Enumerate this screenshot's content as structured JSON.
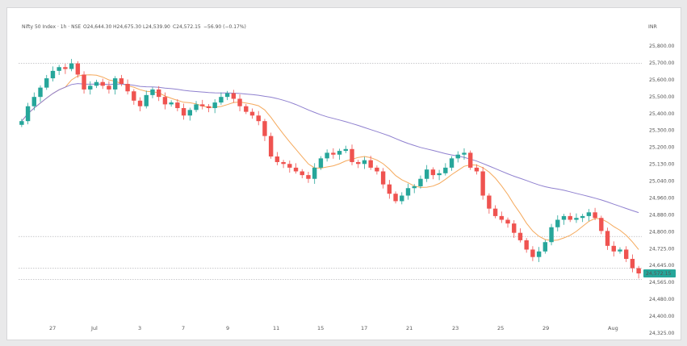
{
  "window": {
    "currency": "INR"
  },
  "legend": {
    "symbol": "Nifty 50 Index · 1h · NSE",
    "open": "O24,644.30",
    "high": "H24,675.30",
    "low": "L24,539.90",
    "close": "C24,572.15",
    "change": "−56.90 (−0.17%)"
  },
  "price_label": "24,572.15",
  "colors": {
    "up": "#26a69a",
    "down": "#ef5350",
    "ma_fast": "#f5a95c",
    "ma_slow": "#8f80cf",
    "price_tag": "#26a69a"
  },
  "chart_data": {
    "type": "candlestick",
    "title": "",
    "xlabel": "",
    "ylabel": "",
    "ylim": [
      24325,
      25850
    ],
    "y_ticks": [
      "25,800.00",
      "25,700.00",
      "25,600.00",
      "25,500.00",
      "25,400.00",
      "25,300.00",
      "25,200.00",
      "25,130.00",
      "25,040.00",
      "24,960.00",
      "24,880.00",
      "24,800.00",
      "24,725.00",
      "24,645.00",
      "24,565.00",
      "24,480.00",
      "24,400.00",
      "24,325.00"
    ],
    "x_ticks": [
      "27",
      "Jul",
      "3",
      "7",
      "9",
      "11",
      "15",
      "17",
      "21",
      "23",
      "25",
      "29",
      "Aug"
    ],
    "close_series": [
      25390,
      25470,
      25520,
      25570,
      25620,
      25660,
      25680,
      25670,
      25700,
      25640,
      25560,
      25580,
      25600,
      25580,
      25560,
      25620,
      25590,
      25550,
      25500,
      25470,
      25530,
      25560,
      25520,
      25480,
      25490,
      25460,
      25420,
      25450,
      25480,
      25470,
      25460,
      25490,
      25520,
      25540,
      25510,
      25470,
      25440,
      25420,
      25390,
      25310,
      25200,
      25170,
      25160,
      25140,
      25120,
      25100,
      25080,
      25140,
      25190,
      25220,
      25210,
      25230,
      25240,
      25170,
      25160,
      25180,
      25140,
      25120,
      25050,
      25000,
      24960,
      24990,
      25030,
      25040,
      25080,
      25130,
      25100,
      25110,
      25140,
      25190,
      25210,
      25220,
      25140,
      25120,
      24990,
      24920,
      24880,
      24860,
      24840,
      24790,
      24750,
      24700,
      24660,
      24690,
      24740,
      24820,
      24860,
      24880,
      24860,
      24870,
      24880,
      24900,
      24870,
      24800,
      24720,
      24690,
      24700,
      24650,
      24600,
      24572
    ],
    "series": [
      {
        "name": "",
        "type": "line",
        "smoothing": 8
      },
      {
        "name": "",
        "type": "line",
        "smoothing": 40
      }
    ],
    "last_price": 24572.15,
    "horizontal_lines": [
      25700,
      24770,
      24600,
      24540
    ]
  }
}
